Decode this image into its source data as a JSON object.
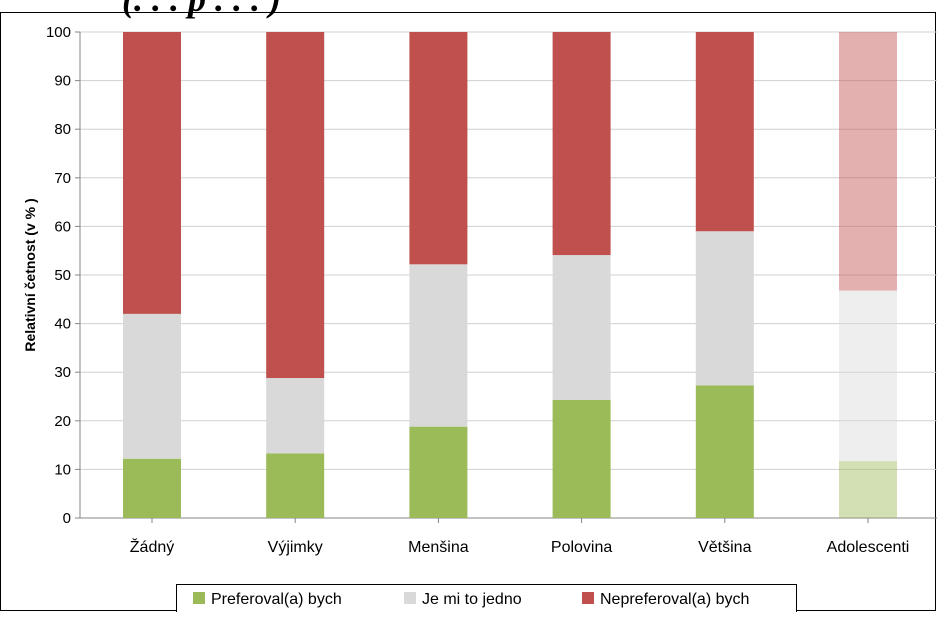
{
  "header_fragment": "(. . . p . . . )",
  "chart_data": {
    "type": "bar",
    "stacked": true,
    "categories": [
      "Žádný",
      "Výjimky",
      "Menšina",
      "Polovina",
      "Většina",
      "Adolescenti"
    ],
    "series": [
      {
        "name": "Preferoval(a) bych",
        "color": "#9bbb59",
        "values": [
          12.2,
          13.3,
          18.8,
          24.3,
          27.3,
          11.7
        ]
      },
      {
        "name": "Je mi to jedno",
        "color": "#d9d9d9",
        "values": [
          29.8,
          15.5,
          33.4,
          29.8,
          31.7,
          35.1
        ]
      },
      {
        "name": "Nepreferoval(a) bych",
        "color": "#c0504d",
        "values": [
          58.0,
          71.2,
          47.8,
          45.9,
          41.0,
          53.2
        ]
      }
    ],
    "faded_categories": [
      "Adolescenti"
    ],
    "ylabel": "Relativní četnost (v % )",
    "xlabel": "",
    "ylim": [
      0,
      100
    ],
    "yticks": [
      0,
      10,
      20,
      30,
      40,
      50,
      60,
      70,
      80,
      90,
      100
    ],
    "grid": true,
    "legend_position": "bottom"
  }
}
